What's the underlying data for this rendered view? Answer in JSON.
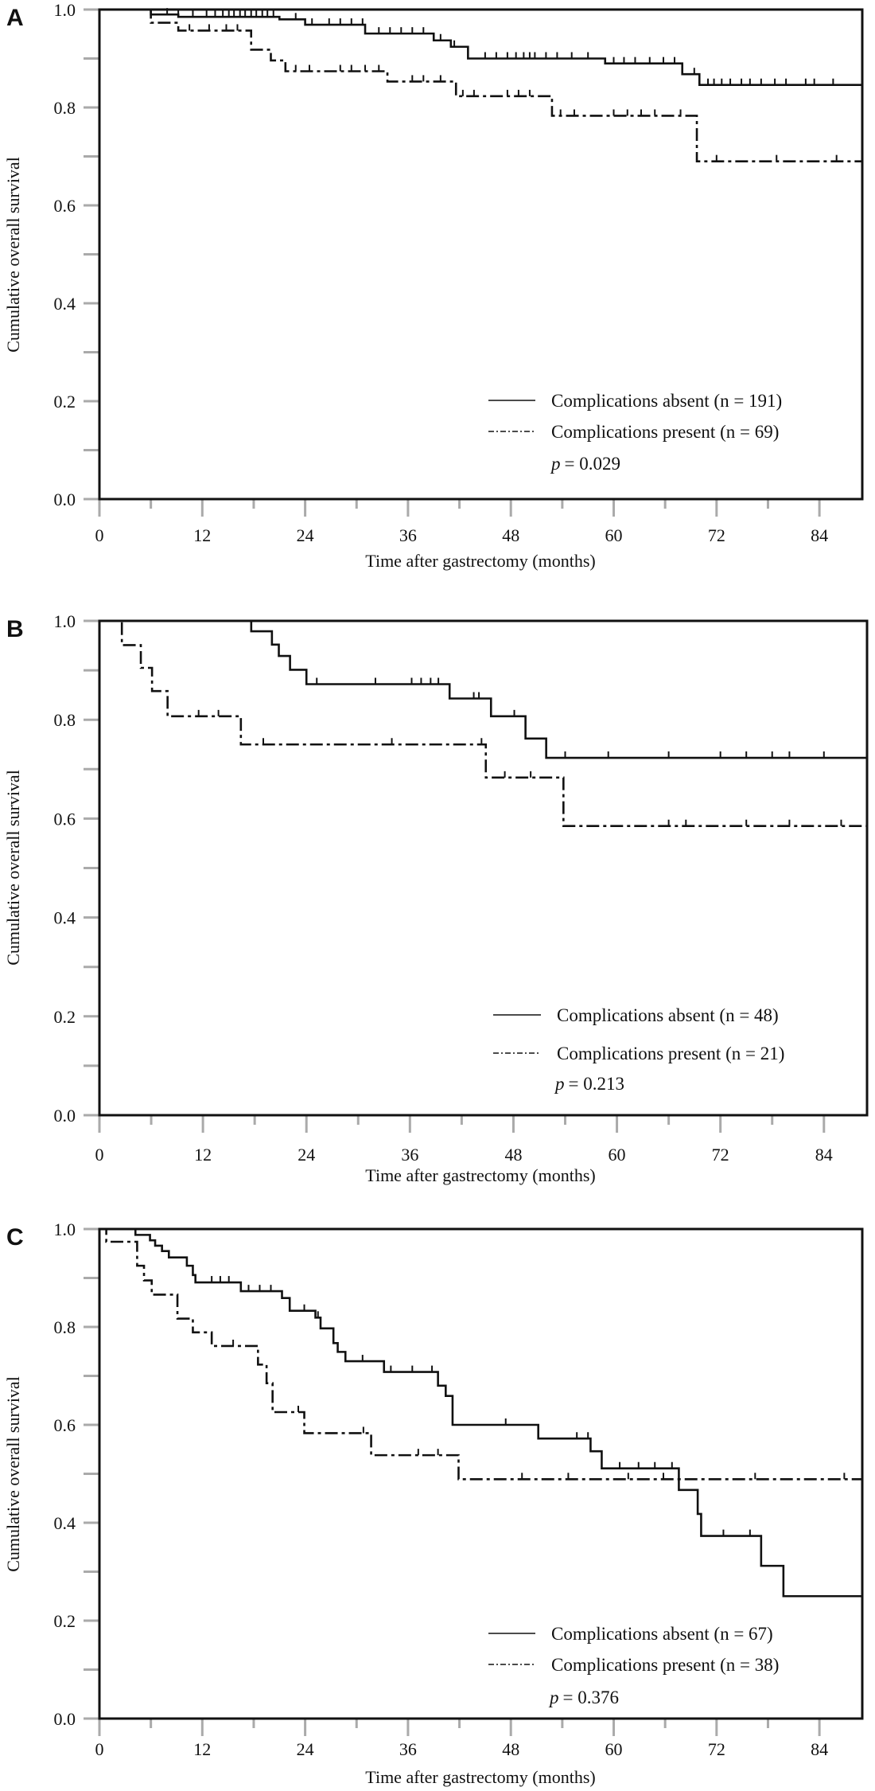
{
  "chart_data": [
    {
      "panel": "A",
      "type": "line",
      "chart_style": "kaplan-meier step curves with censor ticks",
      "xlabel": "Time after gastrectomy (months)",
      "ylabel": "Cumulative overall survival",
      "xlim": [
        0,
        89
      ],
      "ylim": [
        0,
        1
      ],
      "x_ticks": [
        "0",
        "12",
        "24",
        "36",
        "48",
        "60",
        "72",
        "84"
      ],
      "y_ticks": [
        "0.0",
        "0.2",
        "0.4",
        "0.6",
        "0.8",
        "1.0"
      ],
      "grid": false,
      "legend_position": "bottom-right",
      "p_label": "p",
      "p_value": "= 0.029",
      "series": [
        {
          "name": "Complications absent (n = 191)",
          "line_style": "solid",
          "steps": [
            [
              6,
              0.99
            ],
            [
              9.2,
              0.985
            ],
            [
              21,
              0.98
            ],
            [
              24,
              0.969
            ],
            [
              31,
              0.951
            ],
            [
              39,
              0.937
            ],
            [
              41,
              0.924
            ],
            [
              43,
              0.9
            ],
            [
              59,
              0.89
            ],
            [
              68,
              0.868
            ],
            [
              70,
              0.846
            ]
          ],
          "censored": [
            7.9,
            9.2,
            10.9,
            12.5,
            13.5,
            14.4,
            15.1,
            15.7,
            16.4,
            17,
            17.7,
            18.3,
            19,
            19.6,
            20.3,
            22.9,
            24.8,
            26.8,
            28.1,
            29.4,
            30.7,
            32.6,
            33.9,
            35.2,
            36.5,
            37.8,
            39.8,
            41.4,
            45,
            46.3,
            47.6,
            48.6,
            49.5,
            50.2,
            50.8,
            52.1,
            53.4,
            55.1,
            57,
            60,
            61.2,
            62.5,
            64.2,
            65.8,
            67.1,
            69.4,
            71,
            71.7,
            72.6,
            73.6,
            74.9,
            75.9,
            77.2,
            78.8,
            80.1,
            82.4,
            83.4,
            85.6
          ]
        },
        {
          "name": "Complications present (n = 69)",
          "line_style": "dash-dot",
          "steps": [
            [
              6,
              0.973
            ],
            [
              9.2,
              0.957
            ],
            [
              17.7,
              0.918
            ],
            [
              20,
              0.896
            ],
            [
              21.7,
              0.874
            ],
            [
              33.6,
              0.853
            ],
            [
              41.6,
              0.823
            ],
            [
              52.8,
              0.783
            ],
            [
              69.7,
              0.69
            ]
          ],
          "censored": [
            10.5,
            12.8,
            14.8,
            16.1,
            22.9,
            24.5,
            28.1,
            29.4,
            31,
            32.6,
            36.5,
            37.8,
            39.8,
            42.4,
            43.7,
            47.6,
            48.9,
            50.2,
            53.8,
            55.4,
            60,
            61.6,
            63.2,
            64.8,
            67.8,
            72,
            79,
            86
          ]
        }
      ]
    },
    {
      "panel": "B",
      "type": "line",
      "chart_style": "kaplan-meier step curves with censor ticks",
      "xlabel": "Time after gastrectomy (months)",
      "ylabel": "Cumulative overall survival",
      "xlim": [
        0,
        89
      ],
      "ylim": [
        0,
        1
      ],
      "x_ticks": [
        "0",
        "12",
        "24",
        "36",
        "48",
        "60",
        "72",
        "84"
      ],
      "y_ticks": [
        "0.0",
        "0.2",
        "0.4",
        "0.6",
        "0.8",
        "1.0"
      ],
      "grid": false,
      "legend_position": "bottom-right",
      "p_label": "p",
      "p_value": "= 0.213",
      "series": [
        {
          "name": "Complications absent (n = 48)",
          "line_style": "solid",
          "steps": [
            [
              17.6,
              0.979
            ],
            [
              20,
              0.952
            ],
            [
              20.8,
              0.929
            ],
            [
              22.1,
              0.901
            ],
            [
              24,
              0.872
            ],
            [
              40.6,
              0.843
            ],
            [
              45.4,
              0.807
            ],
            [
              49.4,
              0.762
            ],
            [
              51.8,
              0.723
            ]
          ],
          "censored": [
            25.2,
            32,
            36.2,
            37.3,
            38.4,
            39.3,
            43.4,
            44,
            48.1,
            54,
            59,
            66,
            72,
            75,
            78,
            80,
            84
          ]
        },
        {
          "name": "Complications present (n = 21)",
          "line_style": "dash-dot",
          "steps": [
            [
              2.6,
              0.951
            ],
            [
              4.8,
              0.905
            ],
            [
              6.1,
              0.858
            ],
            [
              7.9,
              0.807
            ],
            [
              16.4,
              0.75
            ],
            [
              44.8,
              0.683
            ],
            [
              53.8,
              0.585
            ]
          ],
          "censored": [
            11.5,
            13.8,
            19,
            33.9,
            44.3,
            47,
            50,
            66,
            68,
            75,
            80,
            86
          ]
        }
      ]
    },
    {
      "panel": "C",
      "type": "line",
      "chart_style": "kaplan-meier step curves with censor ticks",
      "xlabel": "Time after gastrectomy (months)",
      "ylabel": "Cumulative overall survival",
      "xlim": [
        0,
        89
      ],
      "ylim": [
        0,
        1
      ],
      "x_ticks": [
        "0",
        "12",
        "24",
        "36",
        "48",
        "60",
        "72",
        "84"
      ],
      "y_ticks": [
        "0.0",
        "0.2",
        "0.4",
        "0.6",
        "0.8",
        "1.0"
      ],
      "grid": false,
      "legend_position": "bottom-right",
      "p_label": "p",
      "p_value": "= 0.376",
      "series": [
        {
          "name": "Complications absent (n = 67)",
          "line_style": "solid",
          "steps": [
            [
              4.2,
              0.988
            ],
            [
              5.9,
              0.977
            ],
            [
              6.5,
              0.966
            ],
            [
              7.3,
              0.955
            ],
            [
              8.1,
              0.942
            ],
            [
              10.2,
              0.925
            ],
            [
              10.9,
              0.906
            ],
            [
              11.2,
              0.891
            ],
            [
              16.5,
              0.873
            ],
            [
              21.3,
              0.859
            ],
            [
              22.2,
              0.833
            ],
            [
              25.2,
              0.819
            ],
            [
              25.8,
              0.797
            ],
            [
              27.3,
              0.767
            ],
            [
              27.8,
              0.749
            ],
            [
              28.7,
              0.73
            ],
            [
              33.2,
              0.708
            ],
            [
              39.5,
              0.68
            ],
            [
              40.4,
              0.659
            ],
            [
              41.2,
              0.6
            ],
            [
              51.2,
              0.572
            ],
            [
              57.3,
              0.546
            ],
            [
              58.6,
              0.511
            ],
            [
              67.6,
              0.467
            ],
            [
              69.8,
              0.418
            ],
            [
              70.2,
              0.373
            ],
            [
              77.2,
              0.312
            ],
            [
              79.8,
              0.25
            ]
          ],
          "censored": [
            13.1,
            14.1,
            15.1,
            17.4,
            18.7,
            20,
            23.9,
            25.5,
            30.7,
            34,
            36.5,
            38.8,
            47.4,
            55.7,
            57,
            60.7,
            62.9,
            64.8,
            66.8,
            72.8,
            75.9
          ]
        },
        {
          "name": "Complications present (n = 38)",
          "line_style": "dash-dot",
          "steps": [
            [
              0.8,
              0.974
            ],
            [
              4.4,
              0.925
            ],
            [
              5.2,
              0.895
            ],
            [
              6.1,
              0.866
            ],
            [
              9.1,
              0.817
            ],
            [
              10.9,
              0.789
            ],
            [
              13.1,
              0.761
            ],
            [
              18.5,
              0.723
            ],
            [
              19.5,
              0.685
            ],
            [
              20.2,
              0.626
            ],
            [
              23.9,
              0.583
            ],
            [
              31.7,
              0.538
            ],
            [
              41.9,
              0.489
            ]
          ],
          "censored": [
            15.6,
            23.2,
            30.8,
            37.2,
            39.5,
            49.3,
            54.7,
            61.7,
            65.8,
            76.5,
            86.9
          ]
        }
      ]
    }
  ],
  "colors": {
    "curve": "#111111",
    "axis": "#111111",
    "tick": "#aaaaaa"
  }
}
